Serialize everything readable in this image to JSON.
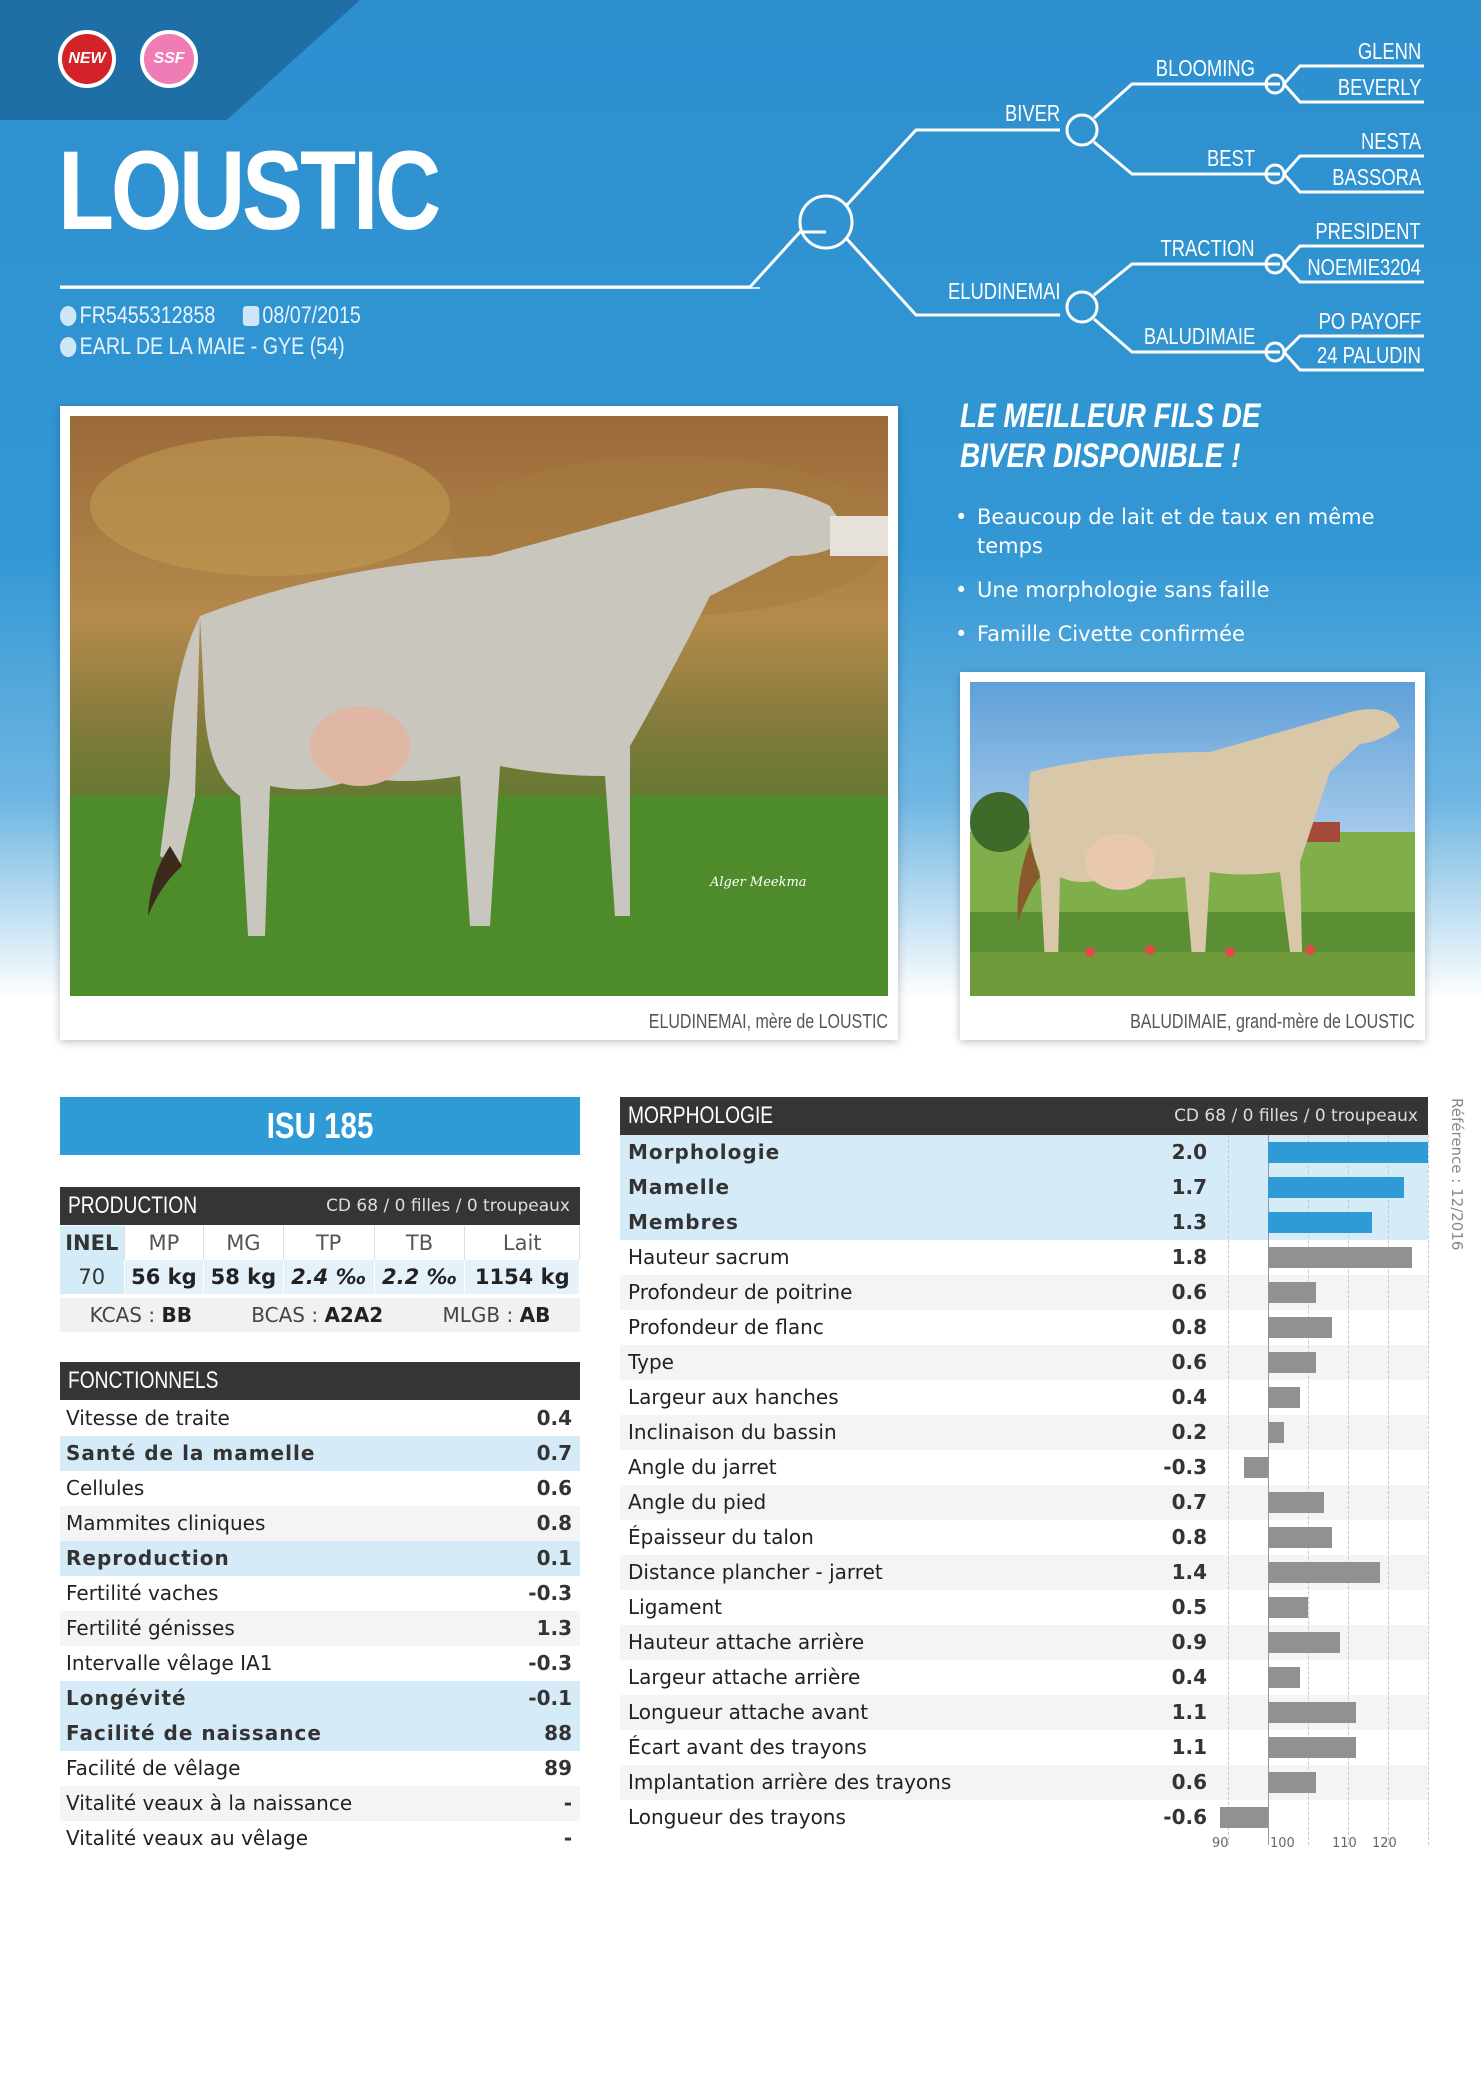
{
  "badges": {
    "new": "NEW",
    "ssf": "SSF"
  },
  "bull_name": "LOUSTIC",
  "id_number": "FR5455312858",
  "birth_date": "08/07/2015",
  "breeder": "EARL DE LA MAIE - GYE (54)",
  "pedigree": {
    "sire": "BIVER",
    "dam": "ELUDINEMAI",
    "sire_sire": "BLOOMING",
    "sire_dam": "BEST",
    "dam_sire": "TRACTION",
    "dam_dam": "BALUDIMAIE",
    "sss": "GLENN",
    "ssd": "BEVERLY",
    "sds": "NESTA",
    "sdd": "BASSORA",
    "dss": "PRESIDENT",
    "dsd": "NOEMIE3204",
    "dds": "PO PAYOFF",
    "ddd": "24 PALUDIN"
  },
  "photo_main_caption": "ELUDINEMAI, mère de LOUSTIC",
  "photo_main_watermark": "Alger Meekma",
  "photo_small_caption": "BALUDIMAIE, grand-mère de LOUSTIC",
  "slogan": "LE MEILLEUR FILS DE BIVER DISPONIBLE !",
  "bullets": [
    "Beaucoup de lait et de taux en même temps",
    "Une morphologie sans faille",
    "Famille Civette confirmée"
  ],
  "isu": "ISU 185",
  "production": {
    "title": "PRODUCTION",
    "subtitle": "CD 68 / 0 filles / 0 troupeaux",
    "headers": [
      "INEL",
      "MP",
      "MG",
      "TP",
      "TB",
      "Lait"
    ],
    "values": [
      "70",
      "56 kg",
      "58 kg",
      "2.4 ‰",
      "2.2 ‰",
      "1154 kg"
    ],
    "kcas_label": "KCAS :",
    "kcas": "BB",
    "bcas_label": "BCAS :",
    "bcas": "A2A2",
    "mlgb_label": "MLGB :",
    "mlgb": "AB"
  },
  "fonctionnels": {
    "title": "FONCTIONNELS",
    "rows": [
      {
        "label": "Vitesse de traite",
        "value": "0.4",
        "style": "plain"
      },
      {
        "label": "Santé de la mamelle",
        "value": "0.7",
        "style": "hl"
      },
      {
        "label": "Cellules",
        "value": "0.6",
        "style": "plain"
      },
      {
        "label": "Mammites cliniques",
        "value": "0.8",
        "style": "alt"
      },
      {
        "label": "Reproduction",
        "value": "0.1",
        "style": "hl"
      },
      {
        "label": "Fertilité vaches",
        "value": "-0.3",
        "style": "plain"
      },
      {
        "label": "Fertilité génisses",
        "value": "1.3",
        "style": "alt"
      },
      {
        "label": "Intervalle vêlage IA1",
        "value": "-0.3",
        "style": "plain"
      },
      {
        "label": "Longévité",
        "value": "-0.1",
        "style": "hl"
      },
      {
        "label": "Facilité de naissance",
        "value": "88",
        "style": "hl"
      },
      {
        "label": "Facilité de vêlage",
        "value": "89",
        "style": "plain"
      },
      {
        "label": "Vitalité veaux à la naissance",
        "value": "-",
        "style": "alt"
      },
      {
        "label": "Vitalité veaux au vêlage",
        "value": "-",
        "style": "plain"
      }
    ]
  },
  "morphologie": {
    "title": "MORPHOLOGIE",
    "subtitle": "CD 68 / 0 filles / 0 troupeaux",
    "axis_ticks": [
      "90",
      "100",
      "110",
      "120"
    ],
    "rows": [
      {
        "label": "Morphologie",
        "value": "2.0",
        "num": 2.0,
        "style": "hl"
      },
      {
        "label": "Mamelle",
        "value": "1.7",
        "num": 1.7,
        "style": "hl"
      },
      {
        "label": "Membres",
        "value": "1.3",
        "num": 1.3,
        "style": "hl"
      },
      {
        "label": "Hauteur sacrum",
        "value": "1.8",
        "num": 1.8,
        "style": "plain"
      },
      {
        "label": "Profondeur de poitrine",
        "value": "0.6",
        "num": 0.6,
        "style": "alt"
      },
      {
        "label": "Profondeur de flanc",
        "value": "0.8",
        "num": 0.8,
        "style": "plain"
      },
      {
        "label": "Type",
        "value": "0.6",
        "num": 0.6,
        "style": "alt"
      },
      {
        "label": "Largeur aux hanches",
        "value": "0.4",
        "num": 0.4,
        "style": "plain"
      },
      {
        "label": "Inclinaison du bassin",
        "value": "0.2",
        "num": 0.2,
        "style": "alt"
      },
      {
        "label": "Angle du jarret",
        "value": "-0.3",
        "num": -0.3,
        "style": "plain"
      },
      {
        "label": "Angle du pied",
        "value": "0.7",
        "num": 0.7,
        "style": "alt"
      },
      {
        "label": "Épaisseur du talon",
        "value": "0.8",
        "num": 0.8,
        "style": "plain"
      },
      {
        "label": "Distance plancher - jarret",
        "value": "1.4",
        "num": 1.4,
        "style": "alt"
      },
      {
        "label": "Ligament",
        "value": "0.5",
        "num": 0.5,
        "style": "plain"
      },
      {
        "label": "Hauteur attache arrière",
        "value": "0.9",
        "num": 0.9,
        "style": "alt"
      },
      {
        "label": "Largeur attache arrière",
        "value": "0.4",
        "num": 0.4,
        "style": "plain"
      },
      {
        "label": "Longueur attache avant",
        "value": "1.1",
        "num": 1.1,
        "style": "alt"
      },
      {
        "label": "Écart avant des trayons",
        "value": "1.1",
        "num": 1.1,
        "style": "plain"
      },
      {
        "label": "Implantation arrière des trayons",
        "value": "0.6",
        "num": 0.6,
        "style": "alt"
      },
      {
        "label": "Longueur des trayons",
        "value": "-0.6",
        "num": -0.6,
        "style": "plain"
      }
    ]
  },
  "reference": "Référence : 12/2016",
  "colors": {
    "blue": "#2f9bd6",
    "bar_blue": "#2f9bd6",
    "bar_gray": "#8f9193",
    "dark": "#353535",
    "highlight": "#d6ebf8"
  }
}
